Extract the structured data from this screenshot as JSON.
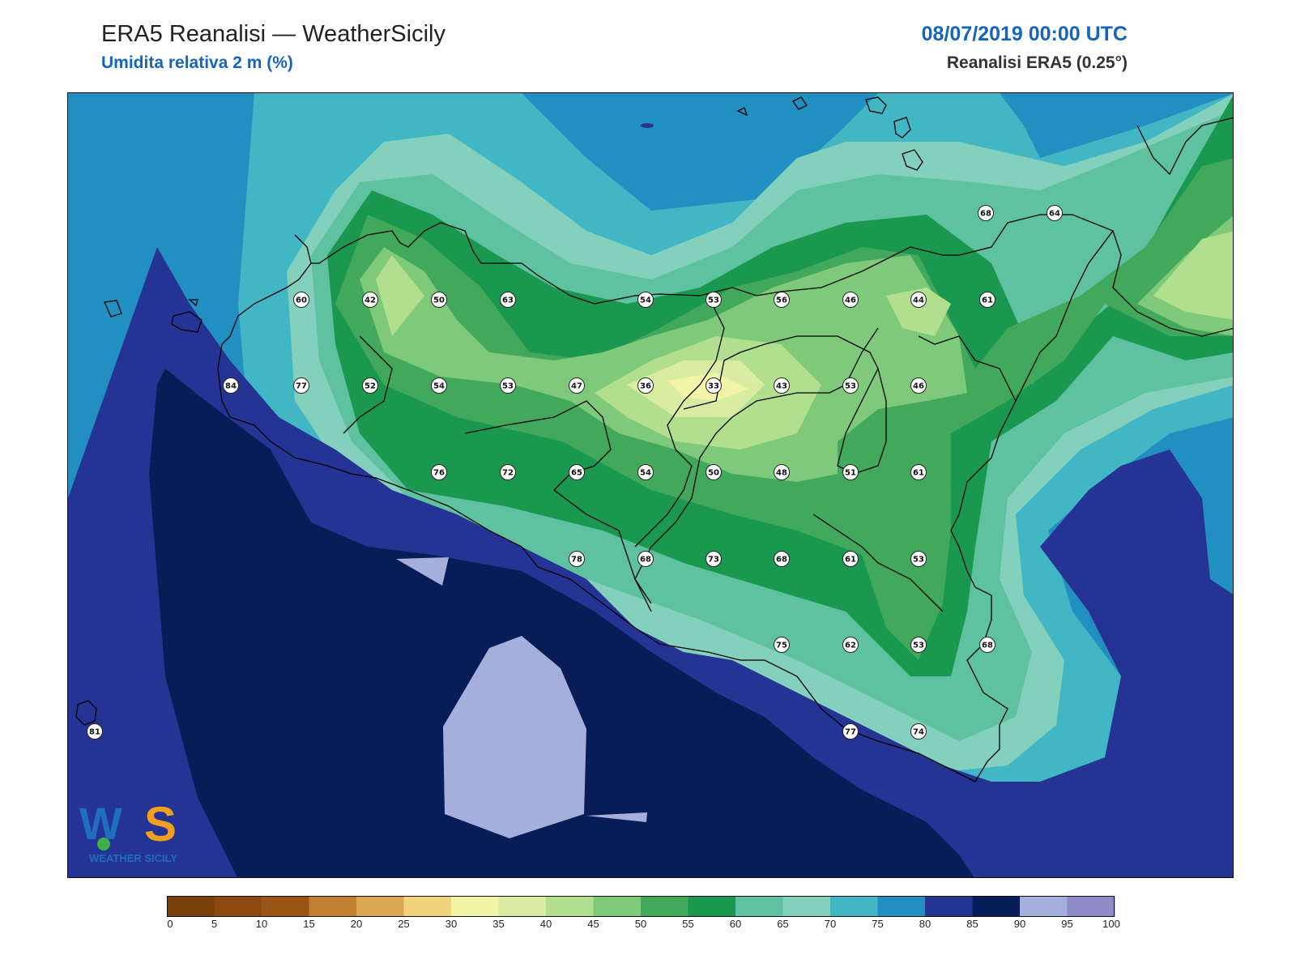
{
  "header": {
    "title": "ERA5 Reanalisi — WeatherSicily",
    "subtitle": "Umidita relativa 2 m (%)",
    "datetime": "08/07/2019 00:00 UTC",
    "source": "Reanalisi ERA5 (0.25°)"
  },
  "colorbar": {
    "ticks": [
      "0",
      "5",
      "10",
      "15",
      "20",
      "25",
      "30",
      "35",
      "40",
      "45",
      "50",
      "55",
      "60",
      "65",
      "70",
      "75",
      "80",
      "85",
      "90",
      "95",
      "100"
    ],
    "colors": [
      "#7a3f0a",
      "#8c4a10",
      "#9c5416",
      "#c17f30",
      "#dba650",
      "#f0d37a",
      "#f4f4a8",
      "#d9eda2",
      "#b2df8e",
      "#7ec97a",
      "#41a85c",
      "#1a9850",
      "#5ec1a0",
      "#83d0bd",
      "#41b6c4",
      "#2190c0",
      "#253494",
      "#081d58",
      "#a6aedb",
      "#8e8cc7"
    ]
  },
  "stations": [
    {
      "v": "60",
      "c": "r1"
    },
    {
      "v": "42",
      "c": "r1"
    },
    {
      "v": "50",
      "c": "r1"
    },
    {
      "v": "63",
      "c": "r1"
    },
    {
      "v": "54",
      "c": "r1"
    },
    {
      "v": "53",
      "c": "r1"
    },
    {
      "v": "56",
      "c": "r1"
    },
    {
      "v": "46",
      "c": "r1"
    },
    {
      "v": "44",
      "c": "r1"
    },
    {
      "v": "61",
      "c": "r1"
    },
    {
      "v": "68",
      "c": "r0"
    },
    {
      "v": "64",
      "c": "r0"
    },
    {
      "v": "84",
      "c": "r2"
    },
    {
      "v": "77",
      "c": "r2"
    },
    {
      "v": "52",
      "c": "r2"
    },
    {
      "v": "54",
      "c": "r2"
    },
    {
      "v": "53",
      "c": "r2"
    },
    {
      "v": "47",
      "c": "r2"
    },
    {
      "v": "36",
      "c": "r2"
    },
    {
      "v": "33",
      "c": "r2"
    },
    {
      "v": "43",
      "c": "r2"
    },
    {
      "v": "53",
      "c": "r2"
    },
    {
      "v": "46",
      "c": "r2"
    },
    {
      "v": "76",
      "c": "r3"
    },
    {
      "v": "72",
      "c": "r3"
    },
    {
      "v": "65",
      "c": "r3"
    },
    {
      "v": "54",
      "c": "r3"
    },
    {
      "v": "50",
      "c": "r3"
    },
    {
      "v": "48",
      "c": "r3"
    },
    {
      "v": "51",
      "c": "r3"
    },
    {
      "v": "61",
      "c": "r3"
    },
    {
      "v": "78",
      "c": "r4"
    },
    {
      "v": "68",
      "c": "r4"
    },
    {
      "v": "73",
      "c": "r4"
    },
    {
      "v": "68",
      "c": "r4"
    },
    {
      "v": "61",
      "c": "r4"
    },
    {
      "v": "53",
      "c": "r4"
    },
    {
      "v": "75",
      "c": "r5"
    },
    {
      "v": "62",
      "c": "r5"
    },
    {
      "v": "53",
      "c": "r5"
    },
    {
      "v": "68",
      "c": "r5"
    },
    {
      "v": "81",
      "c": "r6"
    },
    {
      "v": "77",
      "c": "r6"
    },
    {
      "v": "74",
      "c": "r6"
    }
  ],
  "logo": {
    "text": "WEATHER SICILY",
    "mark": "WS"
  }
}
